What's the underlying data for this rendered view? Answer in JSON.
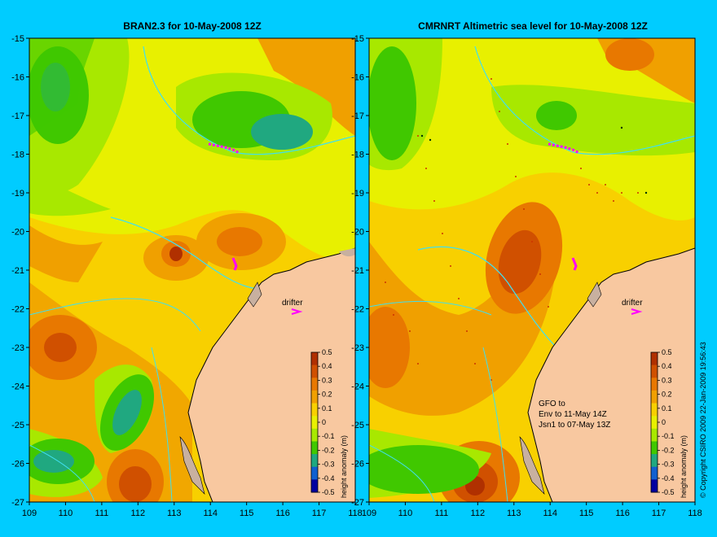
{
  "panels": [
    {
      "id": "left",
      "title": "BRAN2.3 for 10-May-2008 12Z",
      "annotations": [],
      "drifter_label": "drifter",
      "colorbar_label": "height anomaly (m)"
    },
    {
      "id": "right",
      "title": "CMRNRT Altimetric sea level  for 10-May-2008 12Z",
      "annotations": [
        "GFO to",
        "Env to 11-May 14Z",
        "Jsn1 to 07-May 13Z"
      ],
      "drifter_label": "drifter",
      "colorbar_label": "height anomaly (m)"
    }
  ],
  "axes": {
    "x_ticks": [
      "109",
      "110",
      "111",
      "112",
      "113",
      "114",
      "115",
      "116",
      "117",
      "118"
    ],
    "y_ticks": [
      "-15",
      "-16",
      "-17",
      "-18",
      "-19",
      "-20",
      "-21",
      "-22",
      "-23",
      "-24",
      "-25",
      "-26",
      "-27"
    ],
    "lon_range": [
      109,
      118
    ],
    "lat_range": [
      -27,
      -15
    ]
  },
  "colorbar": {
    "ticks": [
      "0.5",
      "0.4",
      "0.3",
      "0.2",
      "0.1",
      "0",
      "-0.1",
      "-0.2",
      "-0.3",
      "-0.4",
      "-0.5"
    ],
    "colors": [
      "#b03000",
      "#d05000",
      "#e87800",
      "#f0a000",
      "#f8d000",
      "#e8f000",
      "#a8e800",
      "#40c800",
      "#20a880",
      "#1060d0",
      "#0000a0"
    ]
  },
  "copyright": "© Copyright CSIRO 2009  22-Jan-2009 19:56:43",
  "colors": {
    "background": "#00ccff",
    "land": "#f8c8a0",
    "coast": "#000000",
    "shelf": "#40e0f0",
    "drifter": "#ff00ff"
  }
}
